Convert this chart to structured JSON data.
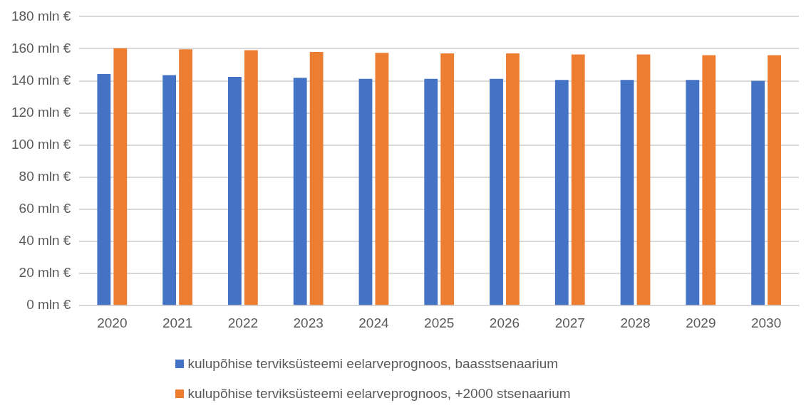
{
  "chart_data": {
    "type": "bar",
    "categories": [
      "2020",
      "2021",
      "2022",
      "2023",
      "2024",
      "2025",
      "2026",
      "2027",
      "2028",
      "2029",
      "2030"
    ],
    "series": [
      {
        "name": "kulupõhise terviksüsteemi eelarveprognoos, baasstsenaarium",
        "color": "#4472c4",
        "values": [
          144.2,
          143.6,
          142.5,
          141.9,
          141.3,
          141.3,
          141.2,
          140.6,
          140.6,
          140.6,
          140.0
        ]
      },
      {
        "name": "kulupõhise terviksüsteemi eelarveprognoos, +2000 stsenaarium",
        "color": "#ed7d31",
        "values": [
          160.3,
          159.7,
          159.1,
          158.0,
          157.4,
          157.1,
          157.1,
          156.5,
          156.5,
          156.0,
          156.0
        ]
      }
    ],
    "ylim": [
      0,
      180
    ],
    "yticks": [
      {
        "value": 0,
        "label": "0 mln €"
      },
      {
        "value": 20,
        "label": "20 mln €"
      },
      {
        "value": 40,
        "label": "40 mln €"
      },
      {
        "value": 60,
        "label": "60 mln €"
      },
      {
        "value": 80,
        "label": "80 mln €"
      },
      {
        "value": 100,
        "label": "100 mln €"
      },
      {
        "value": 120,
        "label": "120 mln €"
      },
      {
        "value": 140,
        "label": "140 mln €"
      },
      {
        "value": 160,
        "label": "160 mln €"
      },
      {
        "value": 180,
        "label": "180 mln €"
      }
    ],
    "grid": "y",
    "legend": "bottom"
  }
}
